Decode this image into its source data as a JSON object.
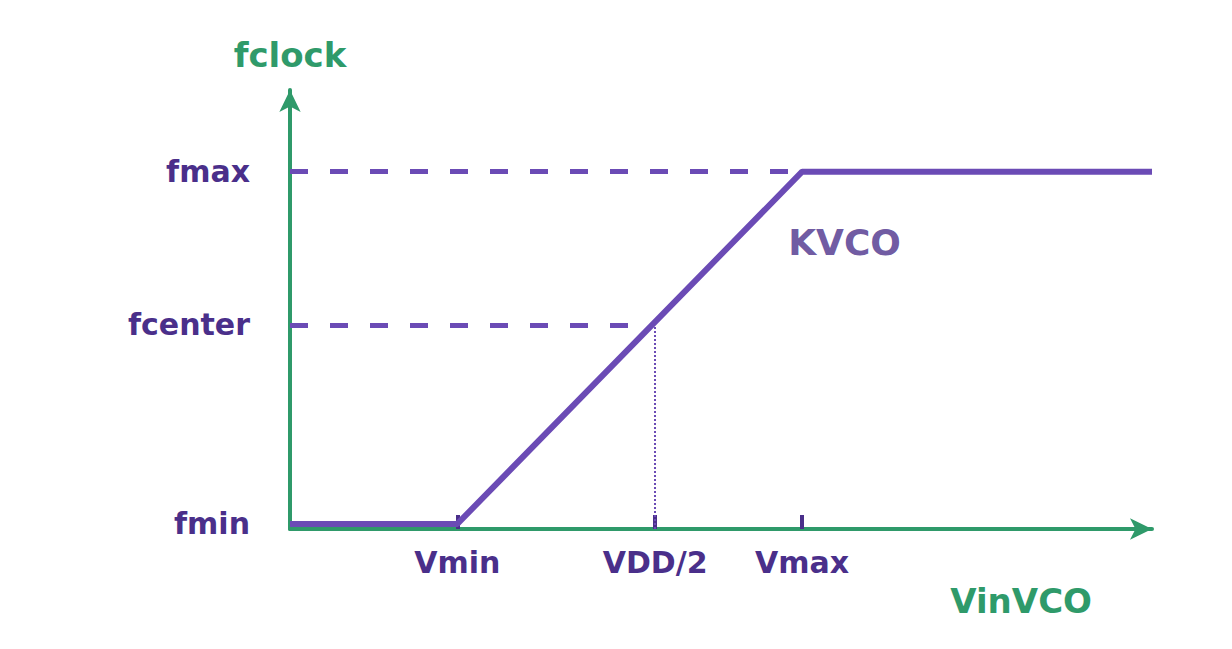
{
  "chart_data": {
    "type": "line",
    "xlabel": "VinVCO",
    "ylabel": "fclock",
    "x": [
      0,
      1.65,
      5.05,
      8.5
    ],
    "values": [
      0.05,
      0.05,
      3.5,
      3.5
    ],
    "color": "#6b4bb5",
    "xlim": [
      0,
      8.5
    ],
    "ylim": [
      0,
      4.3
    ],
    "xticks": [
      {
        "value": 1.65,
        "label": "Vmin"
      },
      {
        "value": 3.6,
        "label": "VDD/2"
      },
      {
        "value": 5.05,
        "label": "Vmax"
      }
    ],
    "yticks": [
      {
        "value": 0.05,
        "label": "fmin"
      },
      {
        "value": 2.0,
        "label": "fcenter"
      },
      {
        "value": 3.5,
        "label": "fmax"
      }
    ],
    "annotations": [
      "KVCO"
    ],
    "grid": false
  }
}
